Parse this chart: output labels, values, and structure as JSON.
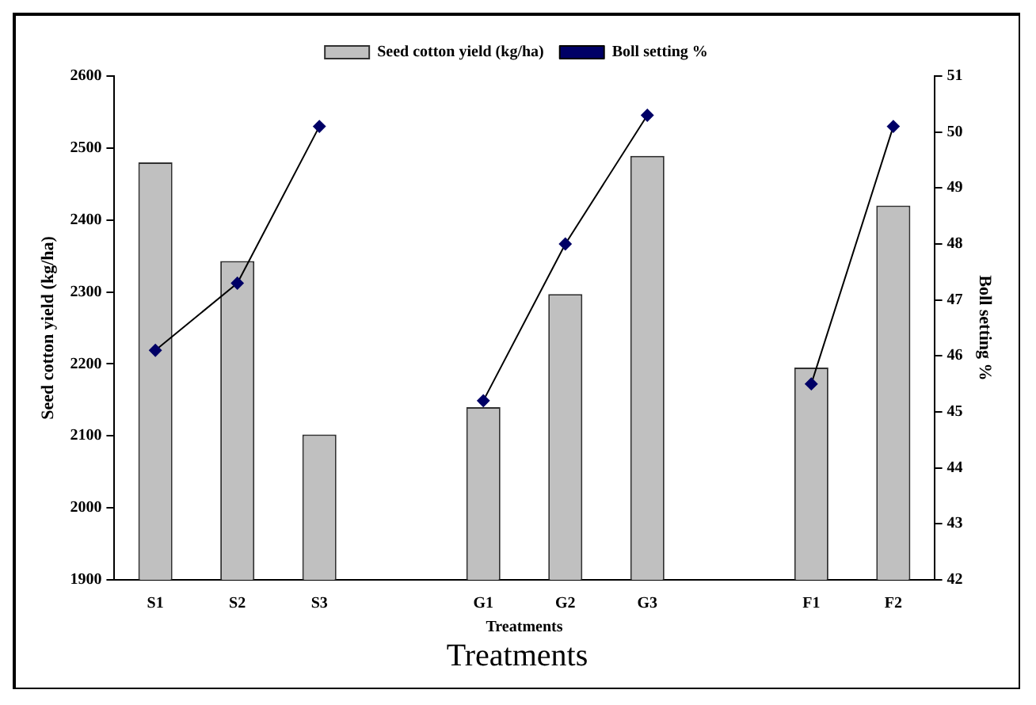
{
  "chart_data": {
    "type": "bar",
    "xlabel": "Treatments",
    "ylabel": "Seed cotton yield (kg/ha)",
    "y2label": "Boll setting %",
    "categories": [
      "S1",
      "S2",
      "S3",
      null,
      "G1",
      "G2",
      "G3",
      null,
      "F1",
      "F2"
    ],
    "series": [
      {
        "name": "Seed cotton yield (kg/ha)",
        "color": "#c0c0c0",
        "values": [
          2480,
          2343,
          2102,
          null,
          2140,
          2297,
          2489,
          null,
          2195,
          2420
        ]
      },
      {
        "name": "Boll setting %",
        "type": "line",
        "axis": "y2",
        "color": "#000066",
        "marker": "diamond",
        "values": [
          46.1,
          47.3,
          50.1,
          null,
          45.2,
          48.0,
          50.3,
          null,
          45.5,
          50.1
        ]
      }
    ],
    "ylim": [
      1900,
      2600
    ],
    "yticks": [
      1900,
      2000,
      2100,
      2200,
      2300,
      2400,
      2500,
      2600
    ],
    "y2lim": [
      42,
      51
    ],
    "y2ticks": [
      42,
      43,
      44,
      45,
      46,
      47,
      48,
      49,
      50,
      51
    ],
    "grid": false,
    "legend": "top",
    "annotations": [
      "Treatments"
    ]
  }
}
